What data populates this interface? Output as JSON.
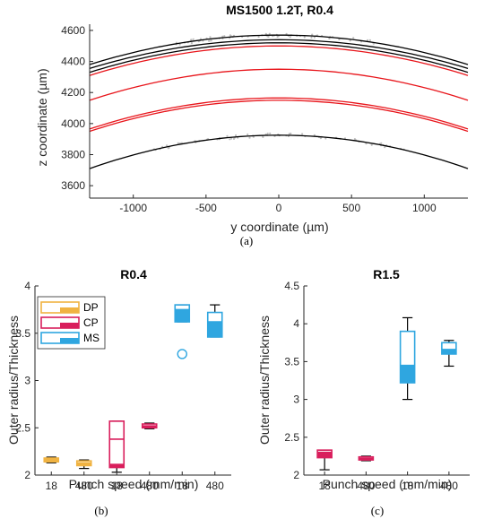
{
  "chart_data": [
    {
      "id": "a",
      "type": "line",
      "title": "MS1500 1.2T, R0.4",
      "xlabel": "y coordinate (µm)",
      "ylabel": "z coordinate (µm)",
      "xlim": [
        -1300,
        1300
      ],
      "ylim": [
        3520,
        4640
      ],
      "xticks": [
        -1000,
        -500,
        0,
        500,
        1000
      ],
      "yticks": [
        3600,
        3800,
        4000,
        4200,
        4400,
        4600
      ],
      "grid": false,
      "subcaption": "(a)",
      "series": [
        {
          "color": "#000000",
          "x": [
            -1300,
            0,
            1300
          ],
          "y": [
            4380,
            4570,
            4380
          ]
        },
        {
          "color": "#000000",
          "x": [
            -1300,
            0,
            1300
          ],
          "y": [
            4355,
            4540,
            4355
          ]
        },
        {
          "color": "#000000",
          "x": [
            -1300,
            0,
            1300
          ],
          "y": [
            4330,
            4520,
            4330
          ]
        },
        {
          "color": "#e8151b",
          "x": [
            -1300,
            0,
            1300
          ],
          "y": [
            4310,
            4500,
            4310
          ]
        },
        {
          "color": "#e8151b",
          "x": [
            -1300,
            0,
            1300
          ],
          "y": [
            4150,
            4350,
            4150
          ]
        },
        {
          "color": "#e8151b",
          "x": [
            -1300,
            0,
            1300
          ],
          "y": [
            3965,
            4165,
            3965
          ]
        },
        {
          "color": "#e8151b",
          "x": [
            -1300,
            0,
            1300
          ],
          "y": [
            3950,
            4150,
            3950
          ]
        },
        {
          "color": "#000000",
          "x": [
            -1300,
            0,
            1300
          ],
          "y": [
            3710,
            3925,
            3710
          ]
        }
      ],
      "scatter_color": "#bdbdbd"
    },
    {
      "id": "b",
      "type": "box",
      "title": "R0.4",
      "xlabel": "Punch speed (mm/min)",
      "ylabel": "Outer radius/Thickness",
      "categories": [
        "18",
        "480",
        "18",
        "480",
        "18",
        "480"
      ],
      "ylim": [
        2,
        4
      ],
      "yticks": [
        "2",
        "2.5",
        "3",
        "3.5",
        "4"
      ],
      "legend": {
        "position": "top-left",
        "entries": [
          {
            "label": "DP",
            "color": "#f0b342"
          },
          {
            "label": "CP",
            "color": "#d91e5c"
          },
          {
            "label": "MS",
            "color": "#2fa6e0"
          }
        ]
      },
      "boxes": [
        {
          "group": "DP",
          "whisker_low": 2.13,
          "q1": 2.14,
          "median": 2.17,
          "q3": 2.18,
          "whisker_high": 2.19,
          "outliers": []
        },
        {
          "group": "DP",
          "whisker_low": 2.07,
          "q1": 2.1,
          "median": 2.13,
          "q3": 2.15,
          "whisker_high": 2.16,
          "outliers": []
        },
        {
          "group": "CP",
          "whisker_low": 2.03,
          "q1": 2.08,
          "median": 2.38,
          "q3": 2.57,
          "whisker_high": 2.57,
          "outliers": [],
          "lower_fill_to": 2.12
        },
        {
          "group": "CP",
          "whisker_low": 2.49,
          "q1": 2.5,
          "median": 2.52,
          "q3": 2.54,
          "whisker_high": 2.55,
          "outliers": []
        },
        {
          "group": "MS",
          "whisker_low": 3.62,
          "q1": 3.62,
          "median": 3.75,
          "q3": 3.8,
          "whisker_high": 3.8,
          "outliers": [
            3.28
          ]
        },
        {
          "group": "MS",
          "whisker_low": 3.46,
          "q1": 3.46,
          "median": 3.62,
          "q3": 3.72,
          "whisker_high": 3.8,
          "outliers": []
        }
      ],
      "subcaption": "(b)"
    },
    {
      "id": "c",
      "type": "box",
      "title": "R1.5",
      "xlabel": "Punch speed (mm/min)",
      "ylabel": "Outer radius/Thickness",
      "categories": [
        "18",
        "480",
        "18",
        "480"
      ],
      "ylim": [
        2,
        4.5
      ],
      "yticks": [
        "2",
        "2.5",
        "3",
        "3.5",
        "4",
        "4.5"
      ],
      "boxes": [
        {
          "group": "CP",
          "whisker_low": 2.07,
          "q1": 2.23,
          "median": 2.3,
          "q3": 2.33,
          "whisker_high": 2.33,
          "outliers": []
        },
        {
          "group": "CP",
          "whisker_low": 2.19,
          "q1": 2.2,
          "median": 2.22,
          "q3": 2.24,
          "whisker_high": 2.25,
          "outliers": []
        },
        {
          "group": "MS",
          "whisker_low": 3.0,
          "q1": 3.22,
          "median": 3.45,
          "q3": 3.9,
          "whisker_high": 4.08,
          "outliers": []
        },
        {
          "group": "MS",
          "whisker_low": 3.44,
          "q1": 3.6,
          "median": 3.66,
          "q3": 3.75,
          "whisker_high": 3.78,
          "outliers": []
        }
      ],
      "subcaption": "(c)"
    }
  ]
}
